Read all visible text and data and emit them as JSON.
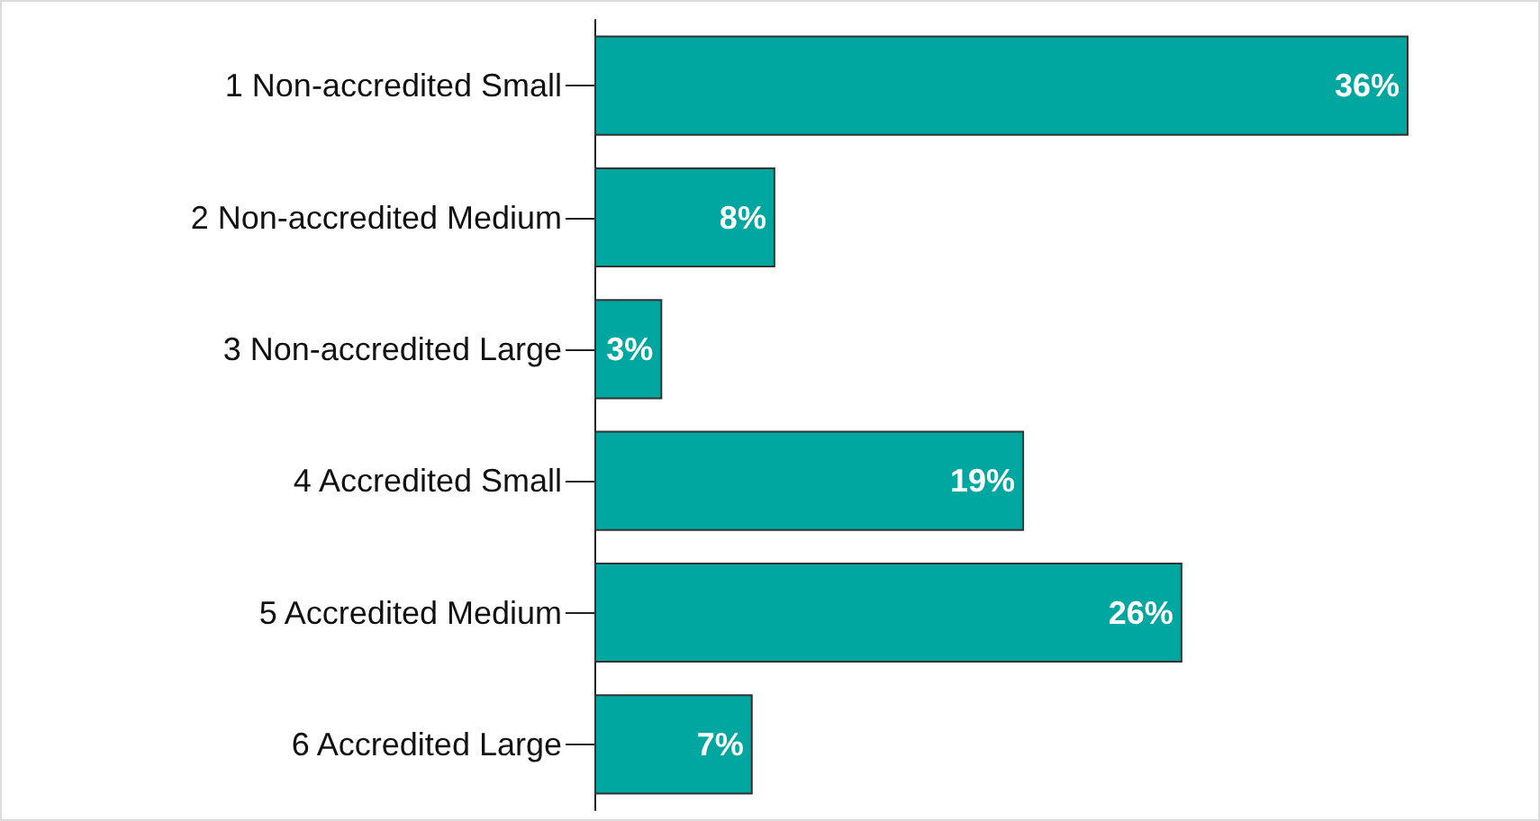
{
  "chart_data": {
    "type": "bar",
    "orientation": "horizontal",
    "categories": [
      "1 Non-accredited Small",
      "2 Non-accredited Medium",
      "3 Non-accredited Large",
      "4 Accredited Small",
      "5 Accredited Medium",
      "6 Accredited Large"
    ],
    "values": [
      36,
      8,
      3,
      19,
      26,
      7
    ],
    "value_labels": [
      "36%",
      "8%",
      "3%",
      "19%",
      "26%",
      "7%"
    ],
    "color": "#00a6a0",
    "tick_labels": "y",
    "grid": false
  }
}
